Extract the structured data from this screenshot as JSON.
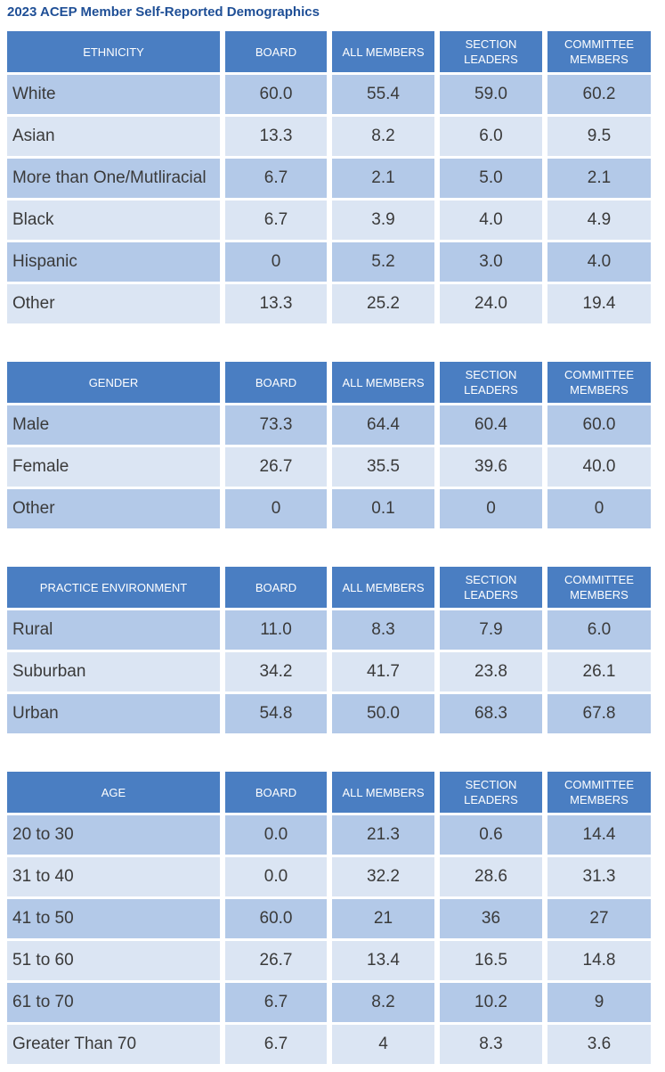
{
  "title": "2023 ACEP Member Self-Reported Demographics",
  "tables": [
    {
      "headers": [
        "ETHNICITY",
        "BOARD",
        "ALL MEMBERS",
        "SECTION LEADERS",
        "COMMITTEE MEMBERS"
      ],
      "rows": [
        [
          "White",
          "60.0",
          "55.4",
          "59.0",
          "60.2"
        ],
        [
          "Asian",
          "13.3",
          "8.2",
          "6.0",
          "9.5"
        ],
        [
          "More than One/Mutliracial",
          "6.7",
          "2.1",
          "5.0",
          "2.1"
        ],
        [
          "Black",
          "6.7",
          "3.9",
          "4.0",
          "4.9"
        ],
        [
          "Hispanic",
          "0",
          "5.2",
          "3.0",
          "4.0"
        ],
        [
          "Other",
          "13.3",
          "25.2",
          "24.0",
          "19.4"
        ]
      ]
    },
    {
      "headers": [
        "GENDER",
        "BOARD",
        "ALL MEMBERS",
        "SECTION LEADERS",
        "COMMITTEE MEMBERS"
      ],
      "rows": [
        [
          "Male",
          "73.3",
          "64.4",
          "60.4",
          "60.0"
        ],
        [
          "Female",
          "26.7",
          "35.5",
          "39.6",
          "40.0"
        ],
        [
          "Other",
          "0",
          "0.1",
          "0",
          "0"
        ]
      ]
    },
    {
      "headers": [
        "PRACTICE ENVIRONMENT",
        "BOARD",
        "ALL MEMBERS",
        "SECTION LEADERS",
        "COMMITTEE MEMBERS"
      ],
      "rows": [
        [
          "Rural",
          "11.0",
          "8.3",
          "7.9",
          "6.0"
        ],
        [
          "Suburban",
          "34.2",
          "41.7",
          "23.8",
          "26.1"
        ],
        [
          "Urban",
          "54.8",
          "50.0",
          "68.3",
          "67.8"
        ]
      ]
    },
    {
      "headers": [
        "AGE",
        "BOARD",
        "ALL MEMBERS",
        "SECTION LEADERS",
        "COMMITTEE MEMBERS"
      ],
      "rows": [
        [
          "20 to 30",
          "0.0",
          "21.3",
          "0.6",
          "14.4"
        ],
        [
          "31 to 40",
          "0.0",
          "32.2",
          "28.6",
          "31.3"
        ],
        [
          "41 to 50",
          "60.0",
          "21",
          "36",
          "27"
        ],
        [
          "51 to 60",
          "26.7",
          "13.4",
          "16.5",
          "14.8"
        ],
        [
          "61 to 70",
          "6.7",
          "8.2",
          "10.2",
          "9"
        ],
        [
          "Greater Than 70",
          "6.7",
          "4",
          "8.3",
          "3.6"
        ]
      ]
    }
  ]
}
